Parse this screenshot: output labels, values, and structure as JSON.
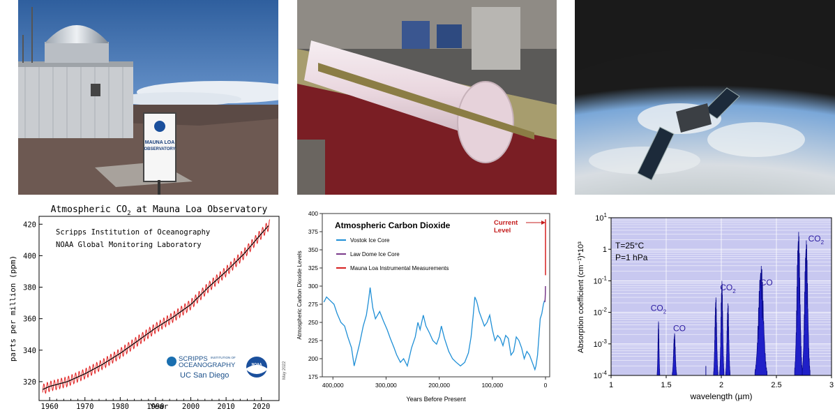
{
  "photos": {
    "observatory_sign": {
      "title": "MAUNA LOA",
      "subtitle": "OBSERVATORY",
      "logo_text": "NOAA"
    }
  },
  "chart_data": [
    {
      "type": "line",
      "title": "Atmospheric CO₂ at Mauna Loa Observatory",
      "title_parts": {
        "prefix": "Atmospheric CO",
        "subscript": "2",
        "suffix": " at Mauna Loa Observatory"
      },
      "xlabel": "Year",
      "ylabel": "parts per million (ppm)",
      "xlim": [
        1957,
        2025
      ],
      "ylim": [
        308,
        425
      ],
      "xticks": [
        1960,
        1970,
        1980,
        1990,
        2000,
        2010,
        2020
      ],
      "yticks": [
        320,
        340,
        360,
        380,
        400,
        420
      ],
      "annotations": [
        "Scripps Institution of Oceanography",
        "NOAA Global Monitoring Laboratory"
      ],
      "logos": {
        "scripps_1": "SCRIPPS",
        "scripps_small": "INSTITUTION OF",
        "scripps_2": "OCEANOGRAPHY",
        "ucsd": "UC San Diego",
        "noaa": "NOAA"
      },
      "side_note": "May 2022",
      "series": [
        {
          "name": "monthly",
          "color": "#e02020",
          "seasonal_amplitude": 3.2,
          "x": [
            1958,
            1960,
            1965,
            1970,
            1975,
            1980,
            1985,
            1990,
            1995,
            2000,
            2005,
            2010,
            2015,
            2020,
            2022.4
          ],
          "y": [
            315,
            317,
            320,
            325,
            331,
            338,
            346,
            354,
            361,
            369,
            380,
            390,
            401,
            414,
            420
          ]
        },
        {
          "name": "annual trend",
          "color": "#000000",
          "x": [
            1958,
            1960,
            1965,
            1970,
            1975,
            1980,
            1985,
            1990,
            1995,
            2000,
            2005,
            2010,
            2015,
            2020,
            2022.4
          ],
          "y": [
            315,
            317,
            320,
            325,
            331,
            338,
            346,
            354,
            361,
            369,
            380,
            390,
            401,
            414,
            420
          ]
        }
      ]
    },
    {
      "type": "line",
      "title": "Atmospheric Carbon Dioxide",
      "xlabel": "Years Before Present",
      "ylabel": "Atmospheric Carbon Dioxide Levels",
      "xlim": [
        420000,
        0
      ],
      "ylim": [
        175,
        400
      ],
      "xticks": [
        400000,
        300000,
        200000,
        100000,
        0
      ],
      "xtick_labels": [
        "400,000",
        "300,000",
        "200,000",
        "100,000",
        "0"
      ],
      "yticks": [
        175,
        200,
        225,
        250,
        275,
        300,
        325,
        350,
        375,
        400
      ],
      "annotation": {
        "line1": "Current",
        "line2": "Level"
      },
      "legend": [
        {
          "name": "Vostok Ice Core",
          "color": "#1f8fd6"
        },
        {
          "name": "Law Dome Ice Core",
          "color": "#7a3a8a"
        },
        {
          "name": "Mauna Loa Instrumental Measurements",
          "color": "#d62020"
        }
      ],
      "series": [
        {
          "name": "Vostok Ice Core",
          "color": "#1f8fd6",
          "x": [
            417000,
            412000,
            405000,
            398000,
            392000,
            385000,
            378000,
            372000,
            365000,
            360000,
            355000,
            350000,
            343000,
            337000,
            333000,
            330000,
            325000,
            320000,
            312000,
            305000,
            298000,
            292000,
            285000,
            280000,
            273000,
            267000,
            260000,
            252000,
            245000,
            240000,
            236000,
            230000,
            225000,
            218000,
            212000,
            205000,
            200000,
            196000,
            190000,
            182000,
            175000,
            168000,
            160000,
            152000,
            145000,
            140000,
            136000,
            133000,
            130000,
            128000,
            125000,
            120000,
            115000,
            110000,
            105000,
            100000,
            95000,
            90000,
            85000,
            80000,
            75000,
            70000,
            65000,
            60000,
            55000,
            50000,
            45000,
            40000,
            35000,
            30000,
            25000,
            20000,
            18000,
            15000,
            12000,
            10000,
            7000,
            4000,
            2000
          ],
          "y": [
            278,
            285,
            280,
            275,
            262,
            250,
            245,
            230,
            215,
            190,
            205,
            220,
            245,
            260,
            280,
            298,
            270,
            255,
            265,
            252,
            240,
            228,
            215,
            205,
            195,
            200,
            190,
            215,
            230,
            250,
            240,
            260,
            245,
            235,
            225,
            220,
            230,
            245,
            228,
            210,
            200,
            195,
            190,
            195,
            208,
            230,
            260,
            285,
            280,
            275,
            265,
            255,
            245,
            250,
            260,
            240,
            225,
            232,
            228,
            218,
            232,
            228,
            205,
            210,
            230,
            225,
            215,
            200,
            210,
            205,
            195,
            185,
            190,
            205,
            235,
            255,
            262,
            275,
            280
          ]
        },
        {
          "name": "Law Dome Ice Core",
          "color": "#7a3a8a",
          "x": [
            1200,
            900,
            600,
            300,
            120
          ],
          "y": [
            278,
            280,
            283,
            290,
            300
          ]
        },
        {
          "name": "Mauna Loa Instrumental Measurements",
          "color": "#d62020",
          "x": [
            64,
            40,
            20,
            0
          ],
          "y": [
            315,
            340,
            370,
            392
          ]
        }
      ]
    },
    {
      "type": "line",
      "xlabel": "wavelength (µm)",
      "ylabel": "Absorption coefficient (cm⁻¹)*10³",
      "xlim": [
        1,
        3
      ],
      "ylim_log10": [
        -4,
        1
      ],
      "xticks": [
        1,
        1.5,
        2,
        2.5,
        3
      ],
      "xtick_labels": [
        "1",
        "1.5",
        "2",
        "2.5",
        "3"
      ],
      "ytick_labels": [
        {
          "base": "10",
          "exp": "1"
        },
        {
          "base": "1",
          "exp": ""
        },
        {
          "base": "10",
          "exp": "-1"
        },
        {
          "base": "10",
          "exp": "-2"
        },
        {
          "base": "10",
          "exp": "-3"
        },
        {
          "base": "10",
          "exp": "-4"
        }
      ],
      "conditions": {
        "temperature": "T=25°C",
        "pressure": "P=1 hPa"
      },
      "band_labels": [
        {
          "text": "CO",
          "sub": "2",
          "x": 1.43,
          "log10y": -1.95
        },
        {
          "text": "CO",
          "sub": "",
          "x": 1.62,
          "log10y": -2.6
        },
        {
          "text": "CO",
          "sub": "2",
          "x": 2.06,
          "log10y": -1.3
        },
        {
          "text": "CO",
          "sub": "",
          "x": 2.41,
          "log10y": -1.15
        },
        {
          "text": "CO",
          "sub": "2",
          "x": 2.86,
          "log10y": 0.25
        }
      ],
      "bands": [
        {
          "molecule": "CO2",
          "center": 1.43,
          "width": 0.012,
          "peak_log10": -2.2
        },
        {
          "molecule": "CO",
          "center": 1.575,
          "width": 0.02,
          "peak_log10": -2.6
        },
        {
          "molecule": "CO2",
          "center": 1.95,
          "width": 0.02,
          "peak_log10": -1.4
        },
        {
          "molecule": "CO2",
          "center": 2.005,
          "width": 0.02,
          "peak_log10": -0.85
        },
        {
          "molecule": "CO2",
          "center": 2.06,
          "width": 0.02,
          "peak_log10": -1.6
        },
        {
          "molecule": "CO",
          "center": 2.36,
          "width": 0.055,
          "peak_log10": -0.35
        },
        {
          "molecule": "CO2",
          "center": 2.7,
          "width": 0.035,
          "peak_log10": 0.78
        },
        {
          "molecule": "CO2",
          "center": 2.77,
          "width": 0.035,
          "peak_log10": 0.5
        }
      ],
      "colors": {
        "plot_bg": "#c8c8f0",
        "line": "#0a0a8c",
        "label": "#2a1aa0"
      }
    }
  ]
}
